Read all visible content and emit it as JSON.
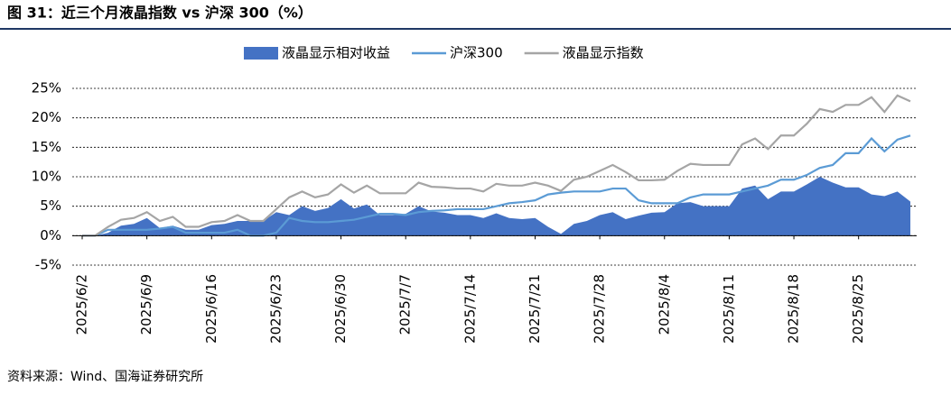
{
  "chart_data": {
    "type": "area_line",
    "title": "图 31：近三个月液晶指数 vs 沪深 300（%）",
    "source": "资料来源：Wind、国海证券研究所",
    "categories": [
      "2025/6/2",
      null,
      null,
      null,
      null,
      "2025/6/9",
      null,
      null,
      null,
      null,
      "2025/6/16",
      null,
      null,
      null,
      null,
      "2025/6/23",
      null,
      null,
      null,
      null,
      "2025/6/30",
      null,
      null,
      null,
      null,
      "2025/7/7",
      null,
      null,
      null,
      null,
      "2025/7/14",
      null,
      null,
      null,
      null,
      "2025/7/21",
      null,
      null,
      null,
      null,
      "2025/7/28",
      null,
      null,
      null,
      null,
      "2025/8/4",
      null,
      null,
      null,
      null,
      "2025/8/11",
      null,
      null,
      null,
      null,
      "2025/8/18",
      null,
      null,
      null,
      null,
      "2025/8/25",
      null,
      null,
      null,
      null
    ],
    "series": [
      {
        "name": "液晶显示相对收益",
        "kind": "area",
        "color": "#4472c4",
        "values": [
          0,
          0,
          0.5,
          1.7,
          2,
          3,
          1.3,
          1.7,
          1,
          1,
          1.8,
          2,
          2.5,
          2.5,
          2.5,
          4,
          3.5,
          5,
          4.2,
          4.7,
          6.2,
          4.6,
          5.3,
          3.5,
          3.5,
          3.7,
          5,
          4.1,
          3.9,
          3.5,
          3.5,
          3,
          3.8,
          3,
          2.8,
          3,
          1.5,
          0.3,
          2,
          2.5,
          3.5,
          4,
          2.8,
          3.4,
          3.9,
          4,
          5.5,
          5.7,
          5,
          5,
          5,
          8,
          8.5,
          6.2,
          7.5,
          7.5,
          8.7,
          10,
          9,
          8.2,
          8.2,
          7,
          6.7,
          7.5,
          5.8
        ]
      },
      {
        "name": "沪深300",
        "kind": "line",
        "color": "#5b9bd5",
        "values": [
          0,
          0,
          1,
          1,
          1,
          1,
          1.2,
          1.5,
          0.5,
          0.5,
          0.5,
          0.5,
          1,
          0,
          0,
          0.5,
          3,
          2.5,
          2.3,
          2.3,
          2.5,
          2.7,
          3.2,
          3.7,
          3.7,
          3.5,
          4,
          4.2,
          4.3,
          4.5,
          4.5,
          4.5,
          5,
          5.5,
          5.7,
          6,
          7,
          7.3,
          7.5,
          7.5,
          7.5,
          8,
          8,
          6,
          5.5,
          5.5,
          5.5,
          6.5,
          7,
          7,
          7,
          7.5,
          8,
          8.5,
          9.5,
          9.5,
          10.3,
          11.5,
          12,
          14,
          14,
          16.5,
          14.3,
          16.3,
          17
        ]
      },
      {
        "name": "液晶显示指数",
        "kind": "line",
        "color": "#a5a5a5",
        "values": [
          0,
          0,
          1.5,
          2.7,
          3,
          4,
          2.5,
          3.2,
          1.5,
          1.5,
          2.3,
          2.5,
          3.5,
          2.5,
          2.5,
          4.5,
          6.5,
          7.5,
          6.5,
          7,
          8.7,
          7.3,
          8.5,
          7.2,
          7.2,
          7.2,
          9,
          8.3,
          8.2,
          8,
          8,
          7.5,
          8.8,
          8.5,
          8.5,
          9,
          8.5,
          7.6,
          9.5,
          10,
          11,
          12,
          10.8,
          9.4,
          9.4,
          9.5,
          11,
          12.2,
          12,
          12,
          12,
          15.5,
          16.5,
          14.7,
          17,
          17,
          19,
          21.5,
          21,
          22.2,
          22.2,
          23.5,
          21,
          23.8,
          22.8
        ]
      }
    ],
    "ylim": [
      -5,
      25
    ],
    "yticks": [
      {
        "value": -5,
        "label": "-5%"
      },
      {
        "value": 0,
        "label": "0%"
      },
      {
        "value": 5,
        "label": "5%"
      },
      {
        "value": 10,
        "label": "10%"
      },
      {
        "value": 15,
        "label": "15%"
      },
      {
        "value": 20,
        "label": "20%"
      },
      {
        "value": 25,
        "label": "25%"
      }
    ],
    "grid": true,
    "legend": "top"
  }
}
